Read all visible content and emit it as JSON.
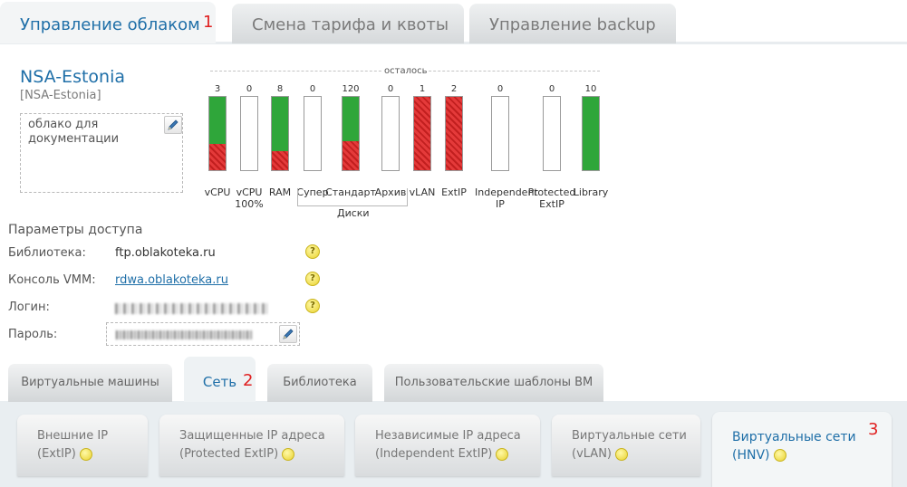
{
  "top_tabs": [
    {
      "label": "Управление облаком",
      "active": true
    },
    {
      "label": "Смена тарифа и квоты",
      "active": false
    },
    {
      "label": "Управление backup",
      "active": false
    }
  ],
  "markers": [
    "1",
    "2",
    "3"
  ],
  "cloud": {
    "name": "NSA-Estonia",
    "subtitle": "[NSA-Estonia]",
    "description": "облако для документации"
  },
  "quota": {
    "remaining_label": "осталось",
    "disk_group_label": "Диски",
    "items": [
      {
        "value": "3",
        "label": "vCPU",
        "free_fraction": 0.64
      },
      {
        "value": "0",
        "label": "vCPU 100%",
        "free_fraction": 0
      },
      {
        "value": "8",
        "label": "RAM",
        "free_fraction": 0.74
      },
      {
        "value": "0",
        "label": "Супер",
        "free_fraction": 0
      },
      {
        "value": "120",
        "label": "Стандарт",
        "free_fraction": 0.6
      },
      {
        "value": "0",
        "label": "Архив",
        "free_fraction": 0
      },
      {
        "value": "1",
        "label": "vLAN",
        "free_fraction": 0,
        "used_fraction": 1
      },
      {
        "value": "2",
        "label": "ExtIP",
        "free_fraction": 0,
        "used_fraction": 1
      },
      {
        "value": "0",
        "label": "Independent IP",
        "free_fraction": 0
      },
      {
        "value": "0",
        "label": "Protected ExtIP",
        "free_fraction": 0
      },
      {
        "value": "10",
        "label": "Library",
        "free_fraction": 1
      }
    ]
  },
  "access": {
    "title": "Параметры доступа",
    "library_label": "Библиотека:",
    "library_value": "ftp.oblakoteka.ru",
    "console_label": "Консоль VMM:",
    "console_value": "rdwa.oblakoteka.ru",
    "login_label": "Логин:",
    "password_label": "Пароль:",
    "help_glyph": "?"
  },
  "section_tabs": [
    {
      "label": "Виртуальные машины",
      "active": false
    },
    {
      "label": "Сеть",
      "active": true
    },
    {
      "label": "Библиотека",
      "active": false
    },
    {
      "label": "Пользовательские шаблоны ВМ",
      "active": false
    }
  ],
  "network_tabs": [
    {
      "line1": "Внешние IP",
      "line2": "(ExtIP)",
      "active": false
    },
    {
      "line1": "Защищенные IP адреса",
      "line2": "(Protected ExtIP)",
      "active": false
    },
    {
      "line1": "Независимые IP адреса",
      "line2": "(Independent ExtIP)",
      "active": false
    },
    {
      "line1": "Виртуальные сети",
      "line2": "(vLAN)",
      "active": false
    },
    {
      "line1": "Виртуальные сети",
      "line2": "(HNV)",
      "active": true
    }
  ],
  "colors": {
    "accent": "#1f6fa8",
    "free": "#2fa63a",
    "used": "#d22a2a",
    "marker": "#e02020"
  }
}
